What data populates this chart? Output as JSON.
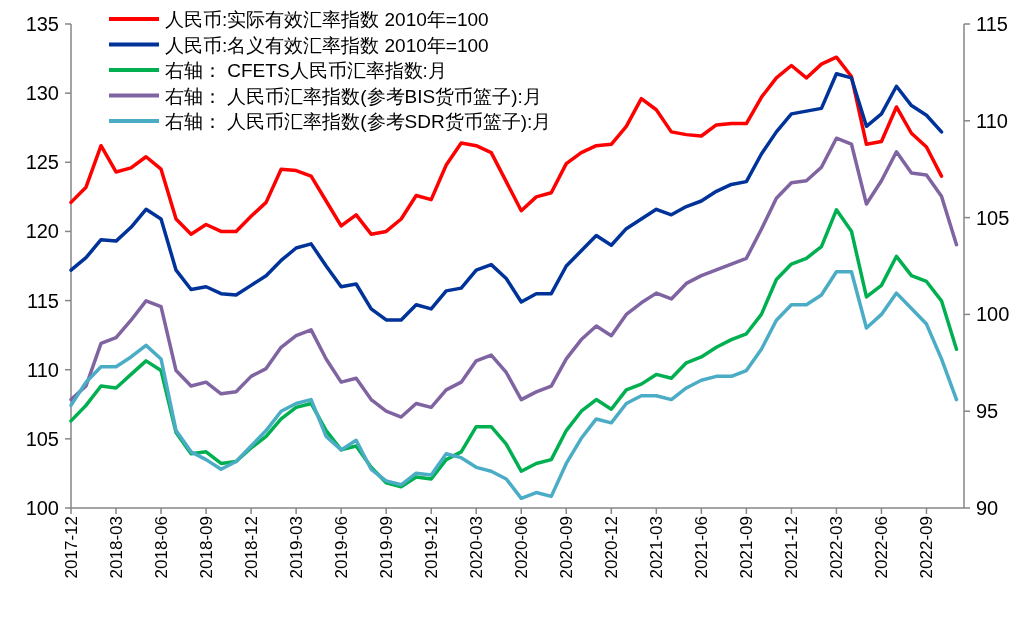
{
  "chart_data": {
    "type": "line",
    "categories": [
      "2017-12",
      null,
      null,
      "2018-03",
      null,
      null,
      "2018-06",
      null,
      null,
      "2018-09",
      null,
      null,
      "2018-12",
      null,
      null,
      "2019-03",
      null,
      null,
      "2019-06",
      null,
      null,
      "2019-09",
      null,
      null,
      "2019-12",
      null,
      null,
      "2020-03",
      null,
      null,
      "2020-06",
      null,
      null,
      "2020-09",
      null,
      null,
      "2020-12",
      null,
      null,
      "2021-03",
      null,
      null,
      "2021-06",
      null,
      null,
      "2021-09",
      null,
      null,
      "2021-12",
      null,
      null,
      "2022-03",
      null,
      null,
      "2022-06",
      null,
      null,
      "2022-09",
      null,
      null
    ],
    "series": [
      {
        "name": "人民币:实际有效汇率指数 2010年=100",
        "color": "#ff0000",
        "values": [
          122.1,
          123.2,
          126.2,
          124.3,
          124.6,
          125.4,
          124.5,
          120.9,
          119.8,
          120.5,
          120.0,
          120.0,
          121.1,
          122.1,
          124.5,
          124.4,
          124.0,
          122.2,
          120.4,
          121.2,
          119.8,
          120.0,
          120.9,
          122.6,
          122.3,
          124.8,
          126.4,
          126.2,
          125.7,
          123.6,
          121.5,
          122.5,
          122.8,
          124.9,
          125.7,
          126.2,
          126.3,
          127.6,
          129.6,
          128.8,
          127.2,
          127.0,
          126.9,
          127.7,
          127.8,
          127.8,
          129.7,
          131.1,
          132.0,
          131.1,
          132.1,
          132.6,
          131.2,
          126.3,
          126.5,
          129.0,
          127.1,
          126.1,
          124.0,
          null
        ]
      },
      {
        "name": "人民币:名义有效汇率指数 2010年=100",
        "color": "#003399",
        "values": [
          117.2,
          118.1,
          119.4,
          119.3,
          120.3,
          121.6,
          120.9,
          117.2,
          115.8,
          116.0,
          115.5,
          115.4,
          116.1,
          116.8,
          117.9,
          118.8,
          119.1,
          117.5,
          116.0,
          116.2,
          114.4,
          113.6,
          113.6,
          114.7,
          114.4,
          115.7,
          115.9,
          117.2,
          117.6,
          116.6,
          114.9,
          115.5,
          115.5,
          117.5,
          118.6,
          119.7,
          119.0,
          120.2,
          120.9,
          121.6,
          121.2,
          121.8,
          122.2,
          122.9,
          123.4,
          123.6,
          125.6,
          127.2,
          128.5,
          128.7,
          128.9,
          131.4,
          131.1,
          127.6,
          128.5,
          130.5,
          129.1,
          128.4,
          127.2,
          null
        ]
      },
      {
        "name": "右轴： CFETS人民币汇率指数:月",
        "color": "#00b050",
        "axis": "y2",
        "values": [
          94.5,
          95.3,
          96.3,
          96.2,
          96.9,
          97.6,
          97.1,
          93.9,
          92.8,
          92.9,
          92.3,
          92.4,
          93.1,
          93.7,
          94.6,
          95.2,
          95.4,
          94.0,
          93.0,
          93.2,
          92.1,
          91.3,
          91.1,
          91.6,
          91.5,
          92.5,
          92.9,
          94.2,
          94.2,
          93.3,
          91.9,
          92.3,
          92.5,
          94.0,
          95.0,
          95.6,
          95.1,
          96.1,
          96.4,
          96.9,
          96.7,
          97.5,
          97.8,
          98.3,
          98.7,
          99.0,
          100.0,
          101.8,
          102.6,
          102.9,
          103.5,
          105.4,
          104.3,
          100.9,
          101.5,
          103.0,
          102.0,
          101.7,
          100.7,
          98.2
        ]
      },
      {
        "name": "右轴： 人民币汇率指数(参考BIS货币篮子):月",
        "color": "#8064a2",
        "axis": "y2",
        "values": [
          95.6,
          96.3,
          98.5,
          98.8,
          99.7,
          100.7,
          100.4,
          97.1,
          96.3,
          96.5,
          95.9,
          96.0,
          96.8,
          97.2,
          98.3,
          98.9,
          99.2,
          97.7,
          96.5,
          96.7,
          95.6,
          95.0,
          94.7,
          95.4,
          95.2,
          96.1,
          96.5,
          97.6,
          97.9,
          97.0,
          95.6,
          96.0,
          96.3,
          97.7,
          98.7,
          99.4,
          98.9,
          100.0,
          100.6,
          101.1,
          100.8,
          101.6,
          102.0,
          102.3,
          102.6,
          102.9,
          104.4,
          106.0,
          106.8,
          106.9,
          107.6,
          109.1,
          108.8,
          105.7,
          106.9,
          108.4,
          107.3,
          107.2,
          106.1,
          103.6
        ]
      },
      {
        "name": "右轴： 人民币汇率指数(参考SDR货币篮子):月",
        "color": "#4bacc6",
        "axis": "y2",
        "values": [
          95.3,
          96.5,
          97.3,
          97.3,
          97.8,
          98.4,
          97.7,
          94.0,
          92.9,
          92.5,
          92.0,
          92.4,
          93.2,
          94.0,
          95.0,
          95.4,
          95.6,
          93.7,
          93.0,
          93.5,
          92.0,
          91.4,
          91.2,
          91.8,
          91.7,
          92.8,
          92.6,
          92.1,
          91.9,
          91.5,
          90.5,
          90.8,
          90.6,
          92.3,
          93.6,
          94.6,
          94.4,
          95.4,
          95.8,
          95.8,
          95.6,
          96.2,
          96.6,
          96.8,
          96.8,
          97.1,
          98.2,
          99.7,
          100.5,
          100.5,
          101.0,
          102.2,
          102.2,
          99.3,
          100.0,
          101.1,
          100.3,
          99.5,
          97.7,
          95.6
        ]
      }
    ],
    "ylim": [
      100,
      135
    ],
    "yticks": [
      100,
      105,
      110,
      115,
      120,
      125,
      130,
      135
    ],
    "y2lim": [
      90,
      115
    ],
    "y2ticks": [
      90,
      95,
      100,
      105,
      110,
      115
    ],
    "legend": "top left"
  }
}
